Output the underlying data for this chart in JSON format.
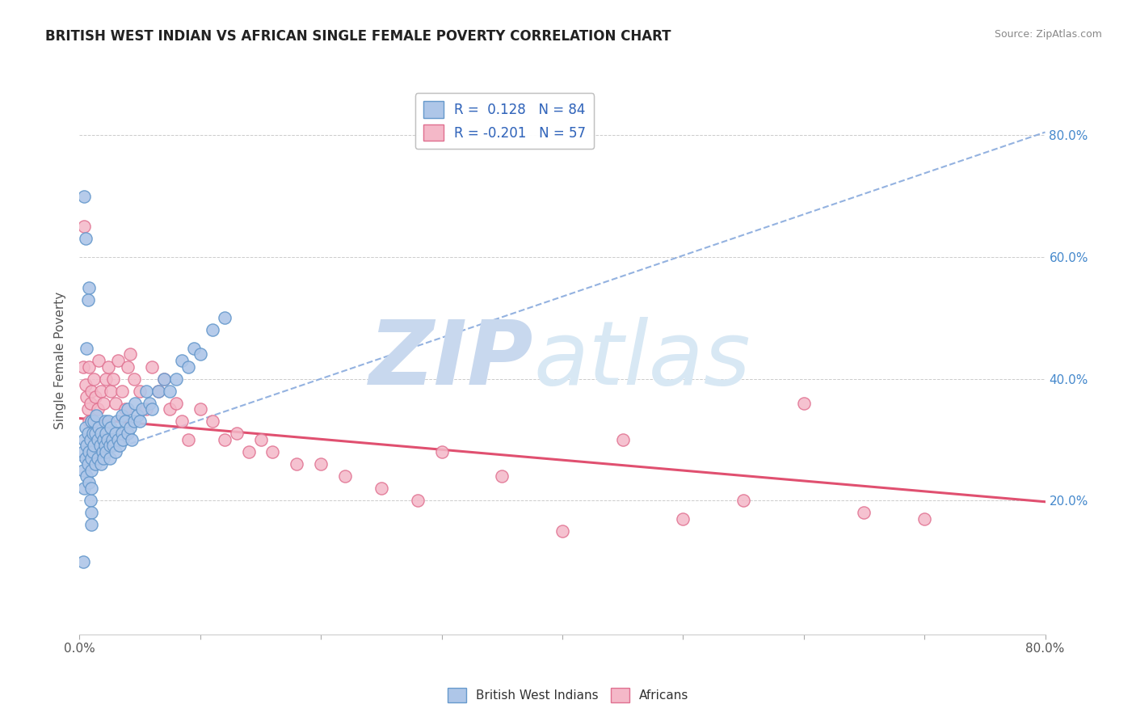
{
  "title": "BRITISH WEST INDIAN VS AFRICAN SINGLE FEMALE POVERTY CORRELATION CHART",
  "source": "Source: ZipAtlas.com",
  "ylabel": "Single Female Poverty",
  "xlim": [
    0.0,
    0.8
  ],
  "ylim": [
    -0.02,
    0.88
  ],
  "xtick_vals": [
    0.0,
    0.1,
    0.2,
    0.3,
    0.4,
    0.5,
    0.6,
    0.7,
    0.8
  ],
  "xtick_show": [
    0.0,
    0.8
  ],
  "ytick_vals": [
    0.2,
    0.4,
    0.6,
    0.8
  ],
  "right_ytick_labels": [
    "20.0%",
    "40.0%",
    "60.0%",
    "80.0%"
  ],
  "bwi_color": "#aec6e8",
  "bwi_edge_color": "#6699cc",
  "african_color": "#f4b8c8",
  "african_edge_color": "#e07090",
  "trend_bwi_color": "#88aadd",
  "trend_african_color": "#e05070",
  "R_bwi": 0.128,
  "N_bwi": 84,
  "R_african": -0.201,
  "N_african": 57,
  "bwi_x": [
    0.003,
    0.003,
    0.004,
    0.004,
    0.005,
    0.005,
    0.006,
    0.006,
    0.007,
    0.007,
    0.008,
    0.008,
    0.009,
    0.009,
    0.01,
    0.01,
    0.01,
    0.01,
    0.01,
    0.01,
    0.011,
    0.011,
    0.012,
    0.012,
    0.013,
    0.013,
    0.014,
    0.015,
    0.015,
    0.016,
    0.017,
    0.018,
    0.018,
    0.019,
    0.02,
    0.02,
    0.021,
    0.021,
    0.022,
    0.022,
    0.023,
    0.024,
    0.025,
    0.025,
    0.026,
    0.027,
    0.028,
    0.03,
    0.03,
    0.031,
    0.032,
    0.033,
    0.035,
    0.035,
    0.036,
    0.038,
    0.04,
    0.04,
    0.042,
    0.043,
    0.045,
    0.046,
    0.048,
    0.05,
    0.052,
    0.055,
    0.058,
    0.06,
    0.065,
    0.07,
    0.075,
    0.08,
    0.085,
    0.09,
    0.095,
    0.1,
    0.11,
    0.12,
    0.008,
    0.007,
    0.006,
    0.005,
    0.004,
    0.003
  ],
  "bwi_y": [
    0.28,
    0.25,
    0.3,
    0.22,
    0.32,
    0.27,
    0.29,
    0.24,
    0.31,
    0.26,
    0.28,
    0.23,
    0.3,
    0.2,
    0.33,
    0.27,
    0.25,
    0.22,
    0.18,
    0.16,
    0.31,
    0.28,
    0.33,
    0.29,
    0.31,
    0.26,
    0.34,
    0.3,
    0.27,
    0.32,
    0.29,
    0.31,
    0.26,
    0.28,
    0.3,
    0.27,
    0.33,
    0.29,
    0.31,
    0.28,
    0.3,
    0.33,
    0.29,
    0.27,
    0.32,
    0.3,
    0.29,
    0.31,
    0.28,
    0.33,
    0.3,
    0.29,
    0.31,
    0.34,
    0.3,
    0.33,
    0.31,
    0.35,
    0.32,
    0.3,
    0.33,
    0.36,
    0.34,
    0.33,
    0.35,
    0.38,
    0.36,
    0.35,
    0.38,
    0.4,
    0.38,
    0.4,
    0.43,
    0.42,
    0.45,
    0.44,
    0.48,
    0.5,
    0.55,
    0.53,
    0.45,
    0.63,
    0.7,
    0.1
  ],
  "african_x": [
    0.003,
    0.004,
    0.005,
    0.006,
    0.007,
    0.008,
    0.008,
    0.009,
    0.01,
    0.01,
    0.012,
    0.013,
    0.015,
    0.016,
    0.018,
    0.02,
    0.022,
    0.024,
    0.026,
    0.028,
    0.03,
    0.032,
    0.035,
    0.038,
    0.04,
    0.042,
    0.045,
    0.05,
    0.055,
    0.06,
    0.065,
    0.07,
    0.075,
    0.08,
    0.085,
    0.09,
    0.1,
    0.11,
    0.12,
    0.13,
    0.14,
    0.15,
    0.16,
    0.18,
    0.2,
    0.22,
    0.25,
    0.28,
    0.3,
    0.35,
    0.4,
    0.45,
    0.5,
    0.55,
    0.6,
    0.65,
    0.7
  ],
  "african_y": [
    0.42,
    0.65,
    0.39,
    0.37,
    0.35,
    0.33,
    0.42,
    0.36,
    0.38,
    0.33,
    0.4,
    0.37,
    0.35,
    0.43,
    0.38,
    0.36,
    0.4,
    0.42,
    0.38,
    0.4,
    0.36,
    0.43,
    0.38,
    0.35,
    0.42,
    0.44,
    0.4,
    0.38,
    0.35,
    0.42,
    0.38,
    0.4,
    0.35,
    0.36,
    0.33,
    0.3,
    0.35,
    0.33,
    0.3,
    0.31,
    0.28,
    0.3,
    0.28,
    0.26,
    0.26,
    0.24,
    0.22,
    0.2,
    0.28,
    0.24,
    0.15,
    0.3,
    0.17,
    0.2,
    0.36,
    0.18,
    0.17
  ]
}
